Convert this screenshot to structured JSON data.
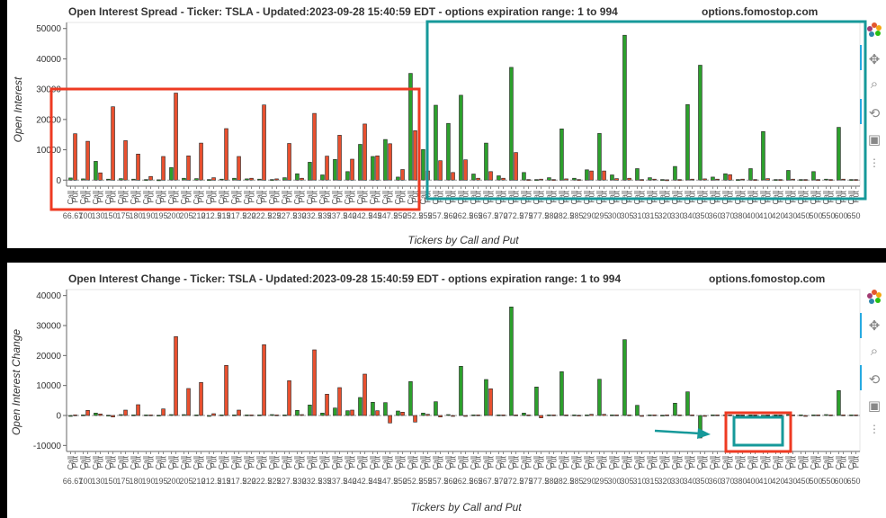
{
  "top": {
    "title": "Open Interest Spread - Ticker: TSLA - Updated:2023-09-28 15:40:59 EDT - options expiration range: 1 to 994",
    "site": "options.fomostop.com",
    "ylabel": "Open Interest",
    "xlabel": "Tickers by Call and Put"
  },
  "bottom": {
    "title": "Open Interest Change - Ticker: TSLA - Updated:2023-09-28 15:40:59 EDT - options expiration range: 1 to 994",
    "site": "options.fomostop.com",
    "ylabel": "Open Interest Change",
    "xlabel": "Tickers by Call and Put"
  },
  "colors": {
    "call": "#2ca02c",
    "put": "#e8502f",
    "highlight_red": "#ee3a22",
    "highlight_teal": "#16999a"
  },
  "toolbar_icons": [
    "bokeh-logo-icon",
    "pan-icon",
    "zoom-icon",
    "wheel-zoom-icon",
    "save-icon",
    "more-icon"
  ],
  "chart_data": [
    {
      "type": "bar",
      "title": "Open Interest Spread - Ticker: TSLA - Updated:2023-09-28 15:40:59 EDT - options expiration range: 1 to 994",
      "xlabel": "Tickers by Call and Put",
      "ylabel": "Open Interest",
      "ylim": [
        -2000,
        52000
      ],
      "yticks": [
        0,
        10000,
        20000,
        30000,
        40000,
        50000
      ],
      "ytick_labels": [
        "0",
        "10000",
        "20000",
        "30000",
        "40000",
        "50000"
      ],
      "strike_labels": [
        "66.67",
        "100",
        "130",
        "150",
        "175",
        "180",
        "190",
        "195",
        "200",
        "205",
        "210",
        "212.5",
        "215",
        "217.5",
        "220",
        "222.5",
        "225",
        "227.5",
        "230",
        "232.5",
        "235",
        "237.5",
        "240",
        "242.5",
        "245",
        "247.5",
        "250",
        "252.5",
        "255",
        "257.5",
        "260",
        "262.5",
        "265",
        "267.5",
        "270",
        "272.5",
        "275",
        "277.5",
        "280",
        "282.5",
        "285",
        "290",
        "295",
        "300",
        "305",
        "310",
        "315",
        "320",
        "330",
        "340",
        "350",
        "360",
        "370",
        "380",
        "400",
        "410",
        "420",
        "430",
        "450",
        "500",
        "550",
        "600",
        "650"
      ],
      "series": [
        {
          "name": "Call",
          "values": [
            700,
            400,
            6200,
            300,
            500,
            300,
            200,
            100,
            4100,
            600,
            500,
            200,
            300,
            600,
            400,
            300,
            200,
            800,
            2100,
            5900,
            1700,
            6800,
            2800,
            11800,
            7800,
            13400,
            1000,
            35200,
            10100,
            24700,
            18700,
            28000,
            2000,
            12200,
            1400,
            37200,
            2500,
            200,
            800,
            16900,
            600,
            3400,
            15400,
            1700,
            47800,
            3800,
            800,
            200,
            4500,
            24900,
            37900,
            1000,
            2100,
            200,
            3800,
            16000,
            200,
            3200,
            200,
            2800,
            300,
            17400,
            200
          ]
        },
        {
          "name": "Put",
          "values": [
            15300,
            12800,
            2400,
            24200,
            13000,
            8600,
            1200,
            7800,
            28700,
            8000,
            12200,
            800,
            17000,
            7800,
            600,
            24800,
            400,
            12100,
            600,
            22000,
            7900,
            14800,
            6900,
            18500,
            8000,
            12000,
            3500,
            16300,
            3000,
            6400,
            2500,
            6700,
            600,
            2800,
            600,
            9100,
            200,
            300,
            200,
            400,
            200,
            3000,
            3000,
            500,
            600,
            200,
            300,
            100,
            200,
            300,
            400,
            300,
            1800,
            300,
            200,
            500,
            200,
            300,
            200,
            200,
            200,
            300,
            200
          ]
        }
      ]
    },
    {
      "type": "bar",
      "title": "Open Interest Change - Ticker: TSLA - Updated:2023-09-28 15:40:59 EDT - options expiration range: 1 to 994",
      "xlabel": "Tickers by Call and Put",
      "ylabel": "Open Interest Change",
      "ylim": [
        -12000,
        42000
      ],
      "yticks": [
        -10000,
        0,
        10000,
        20000,
        30000,
        40000
      ],
      "ytick_labels": [
        "-10000",
        "0",
        "10000",
        "20000",
        "30000",
        "40000"
      ],
      "strike_labels": [
        "66.67",
        "100",
        "130",
        "150",
        "175",
        "180",
        "190",
        "195",
        "200",
        "205",
        "210",
        "212.5",
        "215",
        "217.5",
        "220",
        "222.5",
        "225",
        "227.5",
        "230",
        "232.5",
        "235",
        "237.5",
        "240",
        "242.5",
        "245",
        "247.5",
        "250",
        "252.5",
        "255",
        "257.5",
        "260",
        "262.5",
        "265",
        "267.5",
        "270",
        "272.5",
        "275",
        "277.5",
        "280",
        "282.5",
        "285",
        "290",
        "295",
        "300",
        "305",
        "310",
        "315",
        "320",
        "330",
        "340",
        "350",
        "360",
        "370",
        "380",
        "400",
        "410",
        "420",
        "430",
        "450",
        "500",
        "550",
        "600",
        "650"
      ],
      "series": [
        {
          "name": "Call",
          "values": [
            0,
            200,
            800,
            100,
            300,
            200,
            200,
            100,
            300,
            300,
            200,
            0,
            200,
            200,
            200,
            200,
            300,
            200,
            1700,
            3500,
            800,
            2500,
            1600,
            6000,
            4400,
            4300,
            1500,
            11300,
            800,
            4600,
            300,
            16400,
            200,
            12000,
            200,
            36200,
            800,
            9500,
            200,
            14600,
            200,
            200,
            12100,
            200,
            25300,
            3400,
            200,
            100,
            4100,
            7900,
            -7500,
            200,
            200,
            200,
            200,
            100,
            200,
            300,
            200,
            200,
            300,
            8300,
            200
          ]
        },
        {
          "name": "Put",
          "values": [
            200,
            1700,
            500,
            -500,
            1800,
            3600,
            200,
            2200,
            26300,
            9000,
            11000,
            600,
            16700,
            1800,
            200,
            23600,
            200,
            11600,
            300,
            21900,
            7100,
            9300,
            1800,
            13800,
            1600,
            -2500,
            1100,
            -2200,
            400,
            -500,
            -300,
            0,
            200,
            8900,
            200,
            200,
            200,
            -800,
            200,
            200,
            100,
            400,
            400,
            200,
            200,
            -300,
            200,
            200,
            200,
            200,
            -300,
            200,
            200,
            200,
            200,
            200,
            200,
            200,
            -300,
            200,
            200,
            200,
            200
          ]
        }
      ]
    }
  ]
}
